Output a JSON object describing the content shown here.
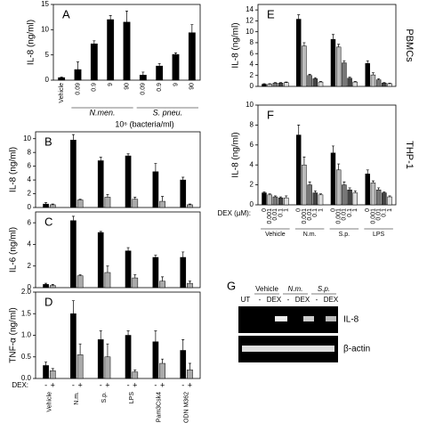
{
  "chart_data": [
    {
      "type": "bar",
      "panel": "A",
      "y_label": "IL-8 (ng/ml)",
      "x_label": "10⁶ (bacteria/ml)",
      "categories": [
        "Vehicle",
        "0.09",
        "0.9",
        "9",
        "90",
        "0.09",
        "0.9",
        "9",
        "90"
      ],
      "group_labels": [
        "N.men.",
        "S. pneu."
      ],
      "values": [
        0.5,
        2.1,
        7.2,
        12,
        11.5,
        1,
        2.8,
        5.1,
        9.4
      ],
      "errors": [
        0.1,
        1.5,
        0.6,
        0.8,
        2.2,
        0.6,
        0.5,
        0.3,
        1.6
      ],
      "color": "#000000",
      "ylim": [
        0,
        15
      ],
      "yticks": [
        0,
        5,
        10,
        15
      ]
    },
    {
      "type": "bar",
      "panel": "B",
      "y_label": "IL-8 (ng/ml)",
      "categories": [
        null,
        null,
        null,
        null,
        null,
        null
      ],
      "series": [
        {
          "color": "#000000",
          "values": [
            0.5,
            9.8,
            6.8,
            7.5,
            5.2,
            4.0
          ],
          "errors": [
            0.2,
            0.8,
            0.5,
            0.3,
            1.2,
            0.4
          ]
        },
        {
          "color": "#aaaaaa",
          "values": [
            0.4,
            1.1,
            1.5,
            1.2,
            0.9,
            0.4
          ],
          "errors": [
            0.1,
            0.1,
            0.4,
            0.3,
            0.7,
            0.1
          ]
        }
      ],
      "ylim": [
        0,
        11
      ],
      "yticks": [
        0,
        2,
        4,
        6,
        8,
        10
      ]
    },
    {
      "type": "bar",
      "panel": "C",
      "y_label": "IL-6 (ng/ml)",
      "categories": [
        null,
        null,
        null,
        null,
        null,
        null
      ],
      "series": [
        {
          "color": "#000000",
          "values": [
            0.3,
            6.2,
            5.1,
            3.4,
            2.8,
            2.8
          ],
          "errors": [
            0.1,
            0.4,
            0.1,
            0.3,
            0.2,
            0.5
          ]
        },
        {
          "color": "#aaaaaa",
          "values": [
            0.2,
            1.1,
            1.4,
            0.9,
            0.6,
            0.4
          ],
          "errors": [
            0.1,
            0.1,
            0.6,
            0.3,
            0.4,
            0.2
          ]
        }
      ],
      "ylim": [
        0,
        7
      ],
      "yticks": [
        0,
        2,
        4,
        6
      ]
    },
    {
      "type": "bar",
      "panel": "D",
      "y_label": "TNF-α (ng/ml)",
      "legend_title": "DEX:",
      "categories": [
        "Vehicle",
        "N.m.",
        "S.p.",
        "LPS",
        "Pam3Csk4",
        "ODN M362"
      ],
      "series": [
        {
          "name": "-",
          "color": "#000000",
          "values": [
            0.3,
            1.5,
            0.9,
            1.0,
            0.85,
            0.65
          ],
          "errors": [
            0.08,
            0.3,
            0.2,
            0.1,
            0.25,
            0.25
          ]
        },
        {
          "name": "+",
          "color": "#aaaaaa",
          "values": [
            0.18,
            0.55,
            0.5,
            0.15,
            0.35,
            0.2
          ],
          "errors": [
            0.05,
            0.25,
            0.3,
            0.05,
            0.1,
            0.15
          ]
        }
      ],
      "ylim": [
        0,
        2
      ],
      "yticks": [
        {
          "value": 0,
          "label": "0.0"
        },
        {
          "value": 0.5,
          "label": "0.5"
        },
        {
          "value": 1,
          "label": "1.0"
        },
        {
          "value": 1.5,
          "label": "1.5"
        },
        {
          "value": 2,
          "label": "2.0"
        }
      ]
    },
    {
      "type": "bar",
      "panel": "E",
      "y_label": "IL-8 (ng/ml)",
      "side_label": "PBMCs",
      "categories": [
        null,
        null,
        null,
        null
      ],
      "series": [
        {
          "color": "#000000",
          "values": [
            0.4,
            12.3,
            8.6,
            4.2
          ],
          "errors": [
            0.1,
            0.8,
            0.9,
            0.5
          ]
        },
        {
          "color": "#bbbbbb",
          "values": [
            0.4,
            7.4,
            7.2,
            2.1
          ],
          "errors": [
            0.1,
            0.6,
            0.5,
            0.4
          ]
        },
        {
          "color": "#777777",
          "values": [
            0.6,
            2,
            4.3,
            1.2
          ],
          "errors": [
            0.1,
            0.2,
            0.4,
            0.2
          ]
        },
        {
          "color": "#444444",
          "values": [
            0.6,
            1.4,
            1.5,
            0.6
          ],
          "errors": [
            0.1,
            0.2,
            0.2,
            0.1
          ]
        },
        {
          "color": "#dddddd",
          "values": [
            0.7,
            0.8,
            0.8,
            0.5
          ],
          "errors": [
            0.1,
            0.1,
            0.1,
            0.1
          ]
        }
      ],
      "ylim": [
        0,
        15
      ],
      "yticks": [
        0,
        2,
        4,
        6,
        8,
        10,
        12,
        14
      ]
    },
    {
      "type": "bar",
      "panel": "F",
      "y_label": "IL-8 (ng/ml)",
      "side_label": "THP-1",
      "legend_title": "DEX (µM):",
      "categories": [
        "Vehicle",
        "N.m.",
        "S.p.",
        "LPS"
      ],
      "series": [
        {
          "name": "0",
          "color": "#000000",
          "values": [
            1.2,
            7.0,
            5.2,
            3.1
          ],
          "errors": [
            0.1,
            1,
            0.7,
            0.4
          ]
        },
        {
          "name": "0.001",
          "color": "#bbbbbb",
          "values": [
            1,
            4,
            3.5,
            2.2
          ],
          "errors": [
            0.1,
            0.8,
            0.6,
            0.2
          ]
        },
        {
          "name": "0.01",
          "color": "#777777",
          "values": [
            0.8,
            2,
            2,
            1.5
          ],
          "errors": [
            0.1,
            0.3,
            0.3,
            0.2
          ]
        },
        {
          "name": "0.1",
          "color": "#444444",
          "values": [
            0.7,
            1.2,
            1.5,
            1.2
          ],
          "errors": [
            0.1,
            0.2,
            0.2,
            0.1
          ]
        },
        {
          "name": "1",
          "color": "#dddddd",
          "values": [
            0.7,
            1,
            1.2,
            0.8
          ],
          "errors": [
            0.2,
            0.1,
            0.2,
            0.1
          ]
        }
      ],
      "ylim": [
        0,
        10
      ],
      "yticks": [
        0,
        2,
        4,
        6,
        8,
        10
      ]
    }
  ],
  "gel": {
    "panel": "G",
    "groups": [
      "Vehicle",
      "N.m.",
      "S.p."
    ],
    "lanes": [
      "UT",
      "-",
      "DEX",
      "-",
      "DEX",
      "-",
      "DEX"
    ],
    "bands": [
      "IL-8",
      "β-actin"
    ]
  }
}
